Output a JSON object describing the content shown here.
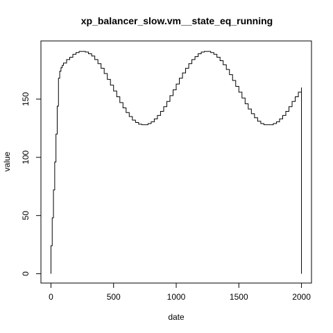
{
  "chart_data": {
    "type": "line",
    "line_style": "step",
    "title": "xp_balancer_slow.vm__state_eq_running",
    "xlabel": "date",
    "ylabel": "value",
    "xlim": [
      -80,
      2080
    ],
    "ylim": [
      -8,
      200
    ],
    "xticks": [
      0,
      500,
      1000,
      1500,
      2000
    ],
    "yticks": [
      0,
      50,
      100,
      150
    ],
    "grid": false,
    "series": [
      {
        "color": "#000000",
        "x": [
          0,
          0,
          10,
          20,
          30,
          40,
          50,
          60,
          70,
          80,
          90,
          100,
          125,
          150,
          175,
          200,
          225,
          250,
          275,
          300,
          325,
          350,
          375,
          400,
          425,
          450,
          475,
          500,
          525,
          550,
          575,
          600,
          625,
          650,
          675,
          700,
          725,
          750,
          775,
          800,
          825,
          850,
          875,
          900,
          925,
          950,
          975,
          1000,
          1025,
          1050,
          1075,
          1100,
          1125,
          1150,
          1175,
          1200,
          1225,
          1250,
          1275,
          1300,
          1325,
          1350,
          1375,
          1400,
          1425,
          1450,
          1475,
          1500,
          1525,
          1550,
          1575,
          1600,
          1625,
          1650,
          1675,
          1700,
          1725,
          1750,
          1775,
          1800,
          1825,
          1850,
          1875,
          1900,
          1925,
          1950,
          1975,
          2000,
          2000
        ],
        "y": [
          0,
          24,
          48,
          72,
          96,
          120,
          144,
          168,
          174,
          177,
          179,
          181,
          184,
          186,
          188.5,
          190,
          191,
          191,
          190.5,
          189,
          187,
          184,
          180.5,
          176.5,
          172,
          167,
          162,
          157,
          152,
          147,
          142.5,
          138.5,
          135,
          132,
          130,
          128.5,
          128,
          128,
          129,
          130.5,
          133,
          136,
          139.5,
          143.5,
          148,
          153,
          158,
          163,
          168,
          172.5,
          176.5,
          180.5,
          184,
          186.5,
          189,
          190.5,
          191,
          191,
          190,
          188.5,
          186,
          183,
          179.5,
          175.5,
          171,
          166,
          161,
          156,
          151,
          146,
          141.5,
          137.5,
          134,
          131,
          129,
          128,
          128,
          128,
          129,
          130.5,
          133,
          136,
          139.5,
          143.5,
          148,
          152,
          156,
          160,
          0
        ]
      }
    ]
  }
}
